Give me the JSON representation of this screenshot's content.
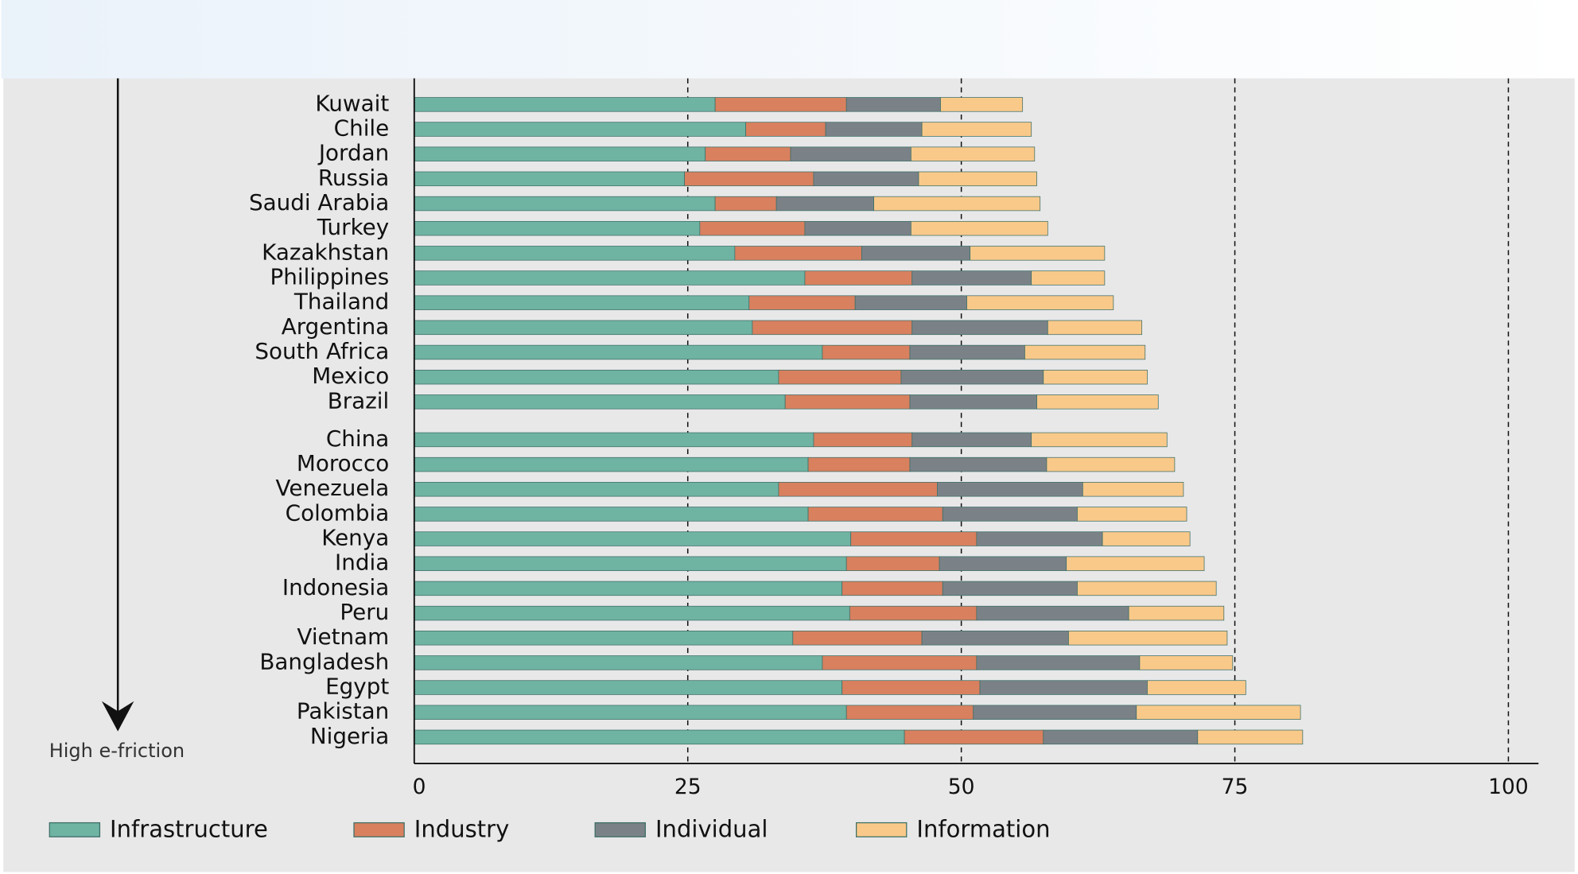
{
  "chart_data": {
    "type": "stacked-barh",
    "annotation": "High e-friction",
    "categories": [
      "Kuwait",
      "Chile",
      "Jordan",
      "Russia",
      "Saudi Arabia",
      "Turkey",
      "Kazakhstan",
      "Philippines",
      "Thailand",
      "Argentina",
      "South Africa",
      "Mexico",
      "Brazil",
      "China",
      "Morocco",
      "Venezuela",
      "Colombia",
      "Kenya",
      "India",
      "Indonesia",
      "Peru",
      "Vietnam",
      "Bangladesh",
      "Egypt",
      "Pakistan",
      "Nigeria"
    ],
    "series": [
      {
        "name": "Infrastructure",
        "color": "#6fb3a3",
        "values": [
          27.5,
          30.3,
          26.6,
          24.7,
          27.5,
          26.1,
          29.3,
          35.7,
          30.6,
          30.9,
          37.3,
          33.3,
          33.9,
          36.5,
          36.0,
          33.3,
          36.0,
          39.9,
          39.5,
          39.1,
          39.8,
          34.6,
          37.3,
          39.1,
          39.5,
          44.8
        ]
      },
      {
        "name": "Industry",
        "color": "#d9805f",
        "values": [
          12,
          7.3,
          7.8,
          11.8,
          5.6,
          9.6,
          11.6,
          9.8,
          9.7,
          14.6,
          8,
          11.2,
          11.4,
          9,
          9.3,
          14.5,
          12.3,
          11.5,
          8.5,
          9.2,
          11.6,
          11.8,
          14.1,
          12.6,
          11.6,
          12.7
        ]
      },
      {
        "name": "Individual",
        "color": "#7a8288",
        "values": [
          8.6,
          8.8,
          11,
          9.6,
          8.9,
          9.7,
          9.9,
          10.9,
          10.2,
          12.4,
          10.5,
          13,
          11.6,
          10.9,
          12.5,
          13.3,
          12.3,
          11.5,
          11.6,
          12.3,
          13.9,
          13.4,
          14.9,
          15.3,
          14.9,
          14.1
        ]
      },
      {
        "name": "Information",
        "color": "#f9c98a",
        "values": [
          7.5,
          10,
          11.3,
          10.8,
          15.2,
          12.5,
          12.3,
          6.7,
          13.4,
          8.6,
          11,
          9.5,
          11.1,
          12.4,
          11.7,
          9.2,
          10,
          8,
          12.6,
          12.7,
          8.7,
          14.5,
          8.5,
          9,
          15,
          9.6
        ]
      }
    ],
    "xlim": [
      0,
      100
    ],
    "xticks": [
      0,
      25,
      50,
      75,
      100
    ],
    "grid": true
  }
}
